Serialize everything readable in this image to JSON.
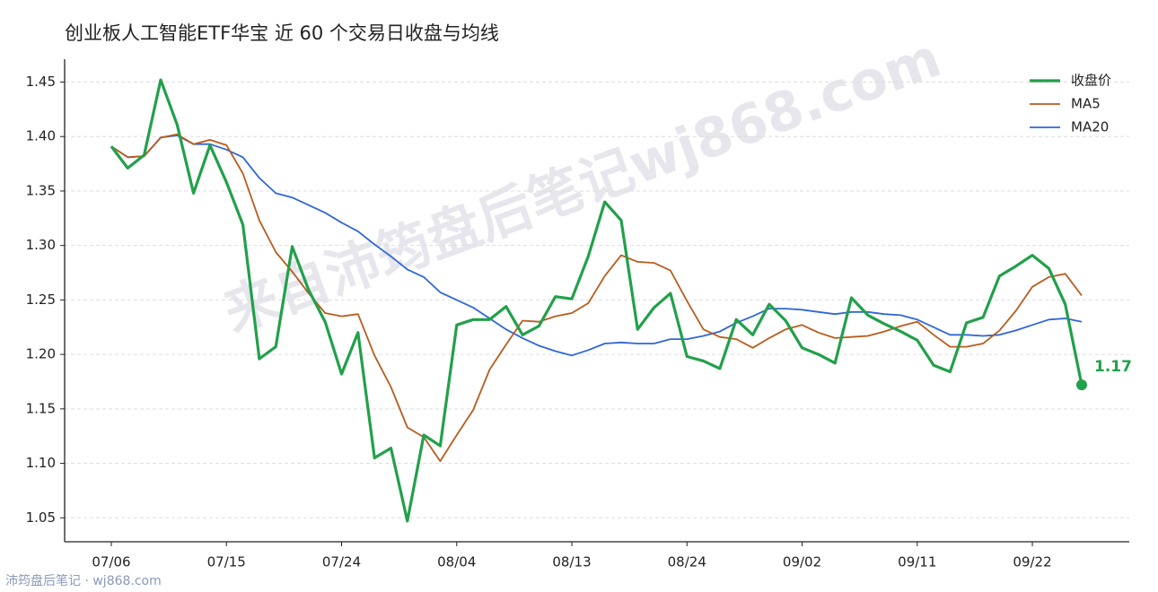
{
  "chart_data": {
    "type": "line",
    "title": "创业板人工智能ETF华宝 近 60 个交易日收盘与均线",
    "watermark": "来自沛筠盘后笔记wj868.com",
    "source": "沛筠盘后笔记 · wj868.com",
    "categories": [
      "07/06",
      null,
      null,
      null,
      null,
      null,
      null,
      "07/15",
      null,
      null,
      null,
      null,
      null,
      null,
      "07/24",
      null,
      null,
      null,
      null,
      null,
      null,
      "08/04",
      null,
      null,
      null,
      null,
      null,
      null,
      "08/13",
      null,
      null,
      null,
      null,
      null,
      null,
      "08/24",
      null,
      null,
      null,
      null,
      null,
      null,
      "09/02",
      null,
      null,
      null,
      null,
      null,
      null,
      "09/11",
      null,
      null,
      null,
      null,
      null,
      null,
      "09/22",
      null,
      null,
      null
    ],
    "series": [
      {
        "name": "收盘价",
        "color": "#22a04b",
        "values": [
          1.391,
          1.371,
          1.383,
          1.452,
          1.411,
          1.348,
          1.392,
          1.358,
          1.319,
          1.196,
          1.207,
          1.299,
          1.259,
          1.23,
          1.182,
          1.22,
          1.105,
          1.114,
          1.047,
          1.126,
          1.116,
          1.227,
          1.232,
          1.232,
          1.244,
          1.218,
          1.226,
          1.253,
          1.251,
          1.29,
          1.34,
          1.323,
          1.223,
          1.243,
          1.256,
          1.198,
          1.194,
          1.187,
          1.232,
          1.218,
          1.246,
          1.231,
          1.206,
          1.2,
          1.192,
          1.252,
          1.236,
          1.228,
          1.221,
          1.213,
          1.19,
          1.184,
          1.229,
          1.234,
          1.272,
          1.281,
          1.291,
          1.279,
          1.246,
          1.172
        ],
        "value_labels": [
          null,
          null,
          null,
          null,
          null,
          null,
          null,
          null,
          null,
          null,
          null,
          null,
          null,
          null,
          null,
          null,
          null,
          null,
          null,
          null,
          null,
          null,
          null,
          null,
          null,
          null,
          null,
          null,
          null,
          null,
          null,
          null,
          null,
          null,
          null,
          null,
          null,
          null,
          null,
          null,
          null,
          null,
          null,
          null,
          null,
          null,
          null,
          null,
          null,
          null,
          null,
          null,
          null,
          null,
          null,
          null,
          null,
          null,
          null,
          "1.17"
        ]
      },
      {
        "name": "MA5",
        "color": "#b85c1e",
        "values": [
          1.391,
          1.381,
          1.382,
          1.399,
          1.402,
          1.393,
          1.397,
          1.392,
          1.366,
          1.323,
          1.294,
          1.276,
          1.256,
          1.238,
          1.235,
          1.237,
          1.199,
          1.17,
          1.133,
          1.124,
          1.102,
          1.126,
          1.149,
          1.186,
          1.209,
          1.231,
          1.23,
          1.235,
          1.238,
          1.247,
          1.272,
          1.291,
          1.285,
          1.284,
          1.277,
          1.249,
          1.223,
          1.216,
          1.214,
          1.206,
          1.215,
          1.223,
          1.227,
          1.22,
          1.215,
          1.216,
          1.217,
          1.221,
          1.226,
          1.23,
          1.218,
          1.207,
          1.207,
          1.21,
          1.222,
          1.24,
          1.262,
          1.271,
          1.274,
          1.254
        ]
      },
      {
        "name": "MA20",
        "color": "#2f66d8",
        "values": [
          1.391,
          1.381,
          1.382,
          1.399,
          1.401,
          1.393,
          1.393,
          1.388,
          1.381,
          1.362,
          1.348,
          1.344,
          1.337,
          1.33,
          1.321,
          1.313,
          1.301,
          1.29,
          1.278,
          1.271,
          1.257,
          1.25,
          1.243,
          1.233,
          1.223,
          1.215,
          1.208,
          1.203,
          1.199,
          1.204,
          1.21,
          1.211,
          1.21,
          1.21,
          1.214,
          1.214,
          1.217,
          1.221,
          1.229,
          1.235,
          1.242,
          1.242,
          1.241,
          1.239,
          1.237,
          1.239,
          1.239,
          1.237,
          1.236,
          1.232,
          1.225,
          1.218,
          1.218,
          1.217,
          1.218,
          1.222,
          1.227,
          1.232,
          1.233,
          1.23
        ]
      }
    ],
    "ylim": [
      1.028,
      1.471
    ],
    "yticks": [
      1.05,
      {
        "value": 1.1,
        "label": "1.10"
      },
      1.15,
      {
        "value": 1.2,
        "label": "1.20"
      },
      1.25,
      {
        "value": 1.3,
        "label": "1.30"
      },
      1.35,
      {
        "value": 1.4,
        "label": "1.40"
      },
      1.45
    ],
    "grid": true,
    "legend": "upper right"
  }
}
